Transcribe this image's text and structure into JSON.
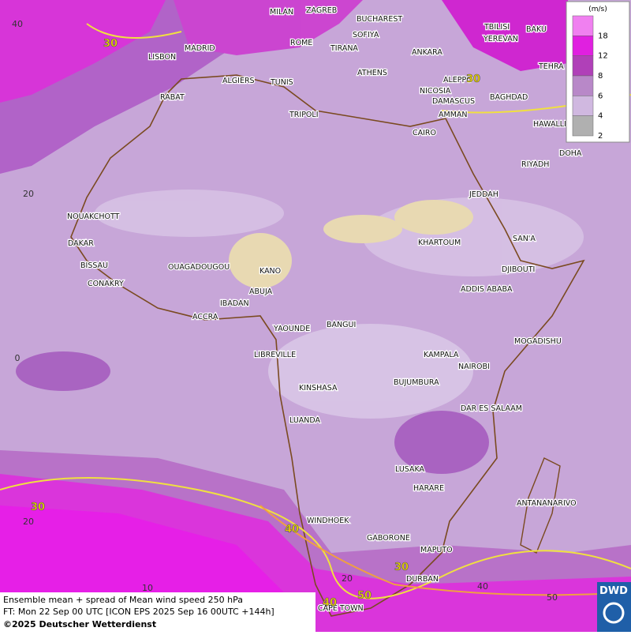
{
  "legend": {
    "unit": "(m/s)",
    "levels": [
      {
        "label": 18,
        "color": "#f080f0"
      },
      {
        "label": 12,
        "color": "#e020e0"
      },
      {
        "label": 8,
        "color": "#b040b8"
      },
      {
        "label": 6,
        "color": "#b888c8"
      },
      {
        "label": 4,
        "color": "#d0b8e0"
      },
      {
        "label": 2,
        "color": "#b0b0b0"
      }
    ]
  },
  "cities": [
    "MILAN",
    "ZAGREB",
    "BUCHAREST",
    "SOFIYA",
    "ROME",
    "TIRANA",
    "ANKARA",
    "TBILISI",
    "YEREVAN",
    "BAKU",
    "TEHRA",
    "LISBON",
    "MADRID",
    "ALGIERS",
    "TUNIS",
    "ATHENS",
    "ALEPPO",
    "NICOSIA",
    "DAMASCUS",
    "BAGHDAD",
    "RABAT",
    "TRIPOLI",
    "AMMAN",
    "HAWALLI",
    "CAIRO",
    "DOHA",
    "RIYADH",
    "JEDDAH",
    "NOUAKCHOTT",
    "SAN'A",
    "DAKAR",
    "KHARTOUM",
    "BISSAU",
    "OUAGADOUGOU",
    "KANO",
    "DJIBOUTI",
    "CONAKRY",
    "ABUJA",
    "ADDIS ABABA",
    "IBADAN",
    "ACCRA",
    "YAOUNDE",
    "BANGUI",
    "MOGADISHU",
    "LIBREVILLE",
    "KAMPALA",
    "NAIROBI",
    "KINSHASA",
    "BUJUMBURA",
    "DAR ES SALAAM",
    "LUANDA",
    "LUSAKA",
    "HARARE",
    "ANTANANARIVO",
    "WINDHOEK",
    "GABORONE",
    "MAPUTO",
    "DURBAN",
    "CAPE TOWN"
  ],
  "contour_labels": [
    30,
    30,
    30,
    30,
    40,
    40,
    50
  ],
  "lat_labels": [
    40,
    20,
    0,
    20
  ],
  "lon_labels": [
    10,
    20,
    40,
    50
  ],
  "footer": {
    "line1": "Ensemble mean + spread of Mean wind speed 250 hPa",
    "line2": "FT: Mon 22 Sep 00 UTC [ICON EPS 2025 Sep 16 00UTC +144h]",
    "line3": "©2025 Deutscher Wetterdienst"
  },
  "logo": "DWD"
}
